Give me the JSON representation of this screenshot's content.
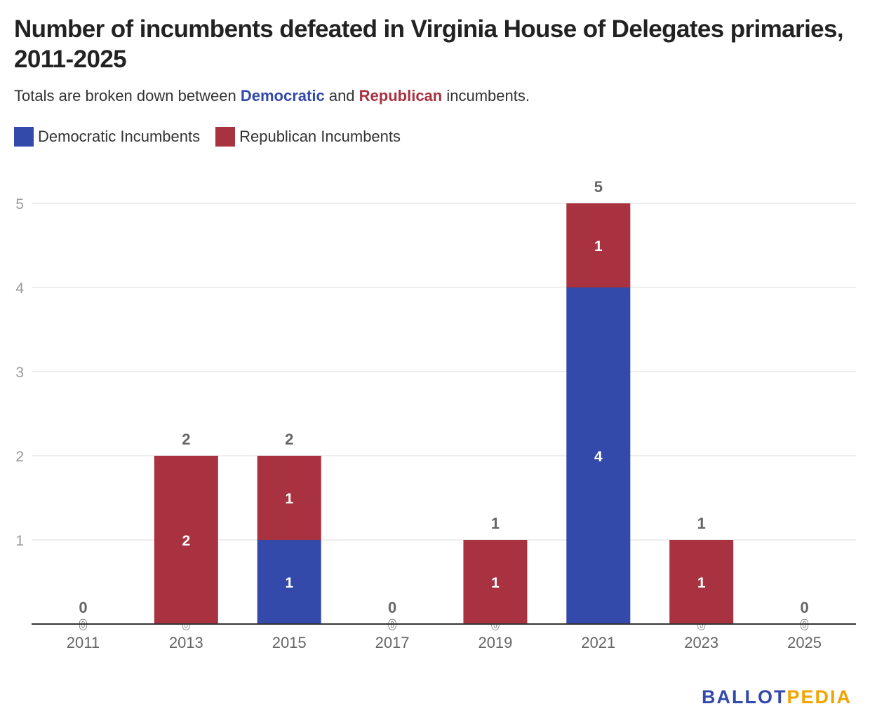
{
  "title": "Number of incumbents defeated in Virginia House of Delegates primaries, 2011-2025",
  "subtitle": {
    "before": "Totals are broken down between ",
    "dem": "Democratic",
    "middle": " and ",
    "rep": "Republican",
    "after": " incumbents."
  },
  "legend": {
    "dem_label": "Democratic Incumbents",
    "rep_label": "Republican Incumbents"
  },
  "colors": {
    "dem": "#334aab",
    "rep": "#a83240"
  },
  "brand": {
    "part1": "BALLOT",
    "part2": "PEDIA"
  },
  "chart_data": {
    "type": "bar",
    "stacked": true,
    "categories": [
      "2011",
      "2013",
      "2015",
      "2017",
      "2019",
      "2021",
      "2023",
      "2025"
    ],
    "series": [
      {
        "name": "Democratic Incumbents",
        "values": [
          0,
          0,
          1,
          0,
          0,
          4,
          0,
          0
        ]
      },
      {
        "name": "Republican Incumbents",
        "values": [
          0,
          2,
          1,
          0,
          1,
          1,
          1,
          0
        ]
      }
    ],
    "totals": [
      0,
      2,
      2,
      0,
      1,
      5,
      1,
      0
    ],
    "ylim": [
      0,
      5
    ],
    "yticks": [
      1,
      2,
      3,
      4,
      5
    ],
    "grid": true,
    "legend_position": "top-left"
  }
}
